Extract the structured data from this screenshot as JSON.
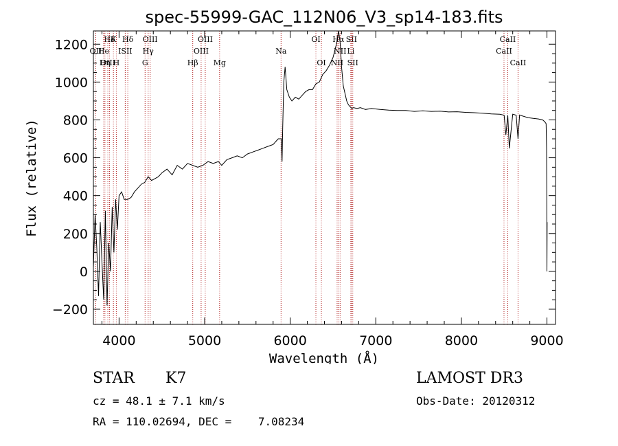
{
  "chart_data": {
    "type": "line",
    "title": "spec-55999-GAC_112N06_V3_sp14-183.fits",
    "xlabel": "Wavelength (Å)",
    "ylabel": "Flux (relative)",
    "xlim": [
      3700,
      9100
    ],
    "ylim": [
      -280,
      1270
    ],
    "xticks": [
      4000,
      5000,
      6000,
      7000,
      8000,
      9000
    ],
    "yticks": [
      -200,
      0,
      200,
      400,
      600,
      800,
      1000,
      1200
    ],
    "grid": false,
    "series": [
      {
        "name": "flux",
        "x": [
          3700,
          3720,
          3740,
          3760,
          3780,
          3800,
          3820,
          3840,
          3860,
          3880,
          3900,
          3920,
          3940,
          3960,
          3980,
          4000,
          4030,
          4060,
          4100,
          4140,
          4180,
          4220,
          4260,
          4300,
          4340,
          4380,
          4420,
          4460,
          4500,
          4560,
          4620,
          4680,
          4740,
          4800,
          4860,
          4920,
          4980,
          5040,
          5100,
          5160,
          5200,
          5260,
          5320,
          5380,
          5440,
          5500,
          5560,
          5620,
          5680,
          5740,
          5800,
          5860,
          5895,
          5905,
          5912,
          5925,
          5940,
          5960,
          5990,
          6020,
          6060,
          6100,
          6140,
          6180,
          6220,
          6260,
          6300,
          6340,
          6380,
          6420,
          6460,
          6500,
          6540,
          6565,
          6585,
          6600,
          6620,
          6640,
          6660,
          6680,
          6700,
          6720,
          6740,
          6780,
          6820,
          6880,
          6950,
          7050,
          7150,
          7250,
          7350,
          7450,
          7550,
          7650,
          7750,
          7850,
          7950,
          8050,
          8150,
          8250,
          8350,
          8450,
          8500,
          8520,
          8542,
          8560,
          8600,
          8640,
          8662,
          8680,
          8720,
          8780,
          8840,
          8900,
          8950,
          8975,
          8990,
          8996,
          8998,
          9000,
          9002
        ],
        "values": [
          20,
          300,
          120,
          -130,
          260,
          50,
          -150,
          320,
          -180,
          150,
          0,
          340,
          100,
          380,
          220,
          400,
          420,
          380,
          380,
          390,
          420,
          440,
          460,
          470,
          500,
          480,
          490,
          500,
          520,
          540,
          510,
          560,
          540,
          570,
          560,
          550,
          560,
          580,
          570,
          580,
          560,
          590,
          600,
          610,
          600,
          620,
          630,
          640,
          650,
          660,
          670,
          700,
          700,
          580,
          760,
          1000,
          1080,
          960,
          920,
          900,
          920,
          910,
          930,
          950,
          960,
          960,
          990,
          1000,
          1040,
          1060,
          1090,
          1130,
          1200,
          1270,
          1200,
          1080,
          980,
          940,
          900,
          880,
          870,
          860,
          865,
          860,
          865,
          855,
          860,
          855,
          852,
          850,
          850,
          845,
          848,
          845,
          846,
          842,
          843,
          840,
          838,
          835,
          832,
          830,
          825,
          720,
          825,
          650,
          830,
          825,
          700,
          826,
          820,
          812,
          808,
          805,
          800,
          790,
          780,
          650,
          400,
          0,
          260
        ]
      }
    ],
    "lines": [
      {
        "label": "Hδ",
        "x": 3889,
        "row": 0
      },
      {
        "label": "K",
        "x": 3934,
        "row": 0
      },
      {
        "label": "Hδ",
        "x": 4102,
        "row": 0
      },
      {
        "label": "OIII",
        "x": 4363,
        "row": 0
      },
      {
        "label": "OIII",
        "x": 5007,
        "row": 0
      },
      {
        "label": "OI",
        "x": 6300,
        "row": 0
      },
      {
        "label": "Hα",
        "x": 6563,
        "row": 0
      },
      {
        "label": "SII",
        "x": 6716,
        "row": 0
      },
      {
        "label": "CaII",
        "x": 8542,
        "row": 0
      },
      {
        "label": "OII",
        "x": 3727,
        "row": 1
      },
      {
        "label": "He",
        "x": 3820,
        "row": 1
      },
      {
        "label": "ISII",
        "x": 4072,
        "row": 1
      },
      {
        "label": "Hγ",
        "x": 4340,
        "row": 1
      },
      {
        "label": "OIII",
        "x": 4959,
        "row": 1
      },
      {
        "label": "Na",
        "x": 5893,
        "row": 1
      },
      {
        "label": "NII",
        "x": 6583,
        "row": 1
      },
      {
        "label": "Li",
        "x": 6708,
        "row": 1
      },
      {
        "label": "CaII",
        "x": 8498,
        "row": 1
      },
      {
        "label": "OIII",
        "x": 3869,
        "row": 2
      },
      {
        "label": "Hη",
        "x": 3835,
        "row": 2
      },
      {
        "label": "H",
        "x": 3968,
        "row": 2
      },
      {
        "label": "G",
        "x": 4304,
        "row": 2
      },
      {
        "label": "Hβ",
        "x": 4861,
        "row": 2
      },
      {
        "label": "Mg",
        "x": 5175,
        "row": 2
      },
      {
        "label": "OI",
        "x": 6364,
        "row": 2
      },
      {
        "label": "NII",
        "x": 6548,
        "row": 2
      },
      {
        "label": "SII",
        "x": 6731,
        "row": 2
      },
      {
        "label": "CaII",
        "x": 8662,
        "row": 2
      }
    ]
  },
  "info": {
    "object_class": "STAR",
    "subclass": "K7",
    "survey": "LAMOST DR3",
    "redshift": "cz = 48.1 ± 7.1 km/s",
    "obs_date": "Obs-Date: 20120312",
    "coords": "RA = 110.02694, DEC =    7.08234"
  }
}
